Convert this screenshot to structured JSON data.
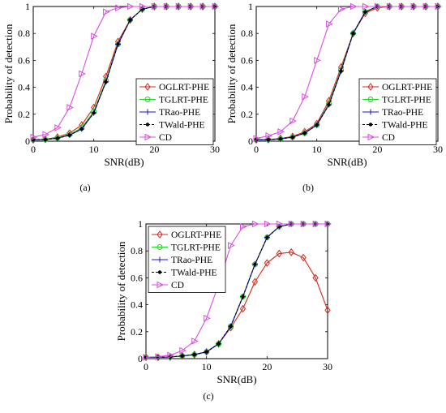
{
  "chart_data": [
    {
      "type": "line",
      "panel_label": "(a)",
      "xlabel": "SNR(dB)",
      "ylabel": "Probability of detection",
      "xlim": [
        0,
        30
      ],
      "ylim": [
        0,
        1
      ],
      "xticks": [
        0,
        10,
        20,
        30
      ],
      "yticks": [
        0,
        0.2,
        0.4,
        0.6,
        0.8,
        1
      ],
      "grid": false,
      "legend_position": "bottom-right",
      "x": [
        0,
        2,
        4,
        6,
        8,
        10,
        12,
        14,
        16,
        18,
        20,
        22,
        24,
        26,
        28,
        30
      ],
      "series": [
        {
          "name": "OGLRT-PHE",
          "color": "#cc2a1e",
          "marker": "diamond",
          "values": [
            0.01,
            0.015,
            0.03,
            0.06,
            0.12,
            0.25,
            0.48,
            0.74,
            0.9,
            0.98,
            1,
            1,
            1,
            1,
            1,
            1
          ]
        },
        {
          "name": "TGLRT-PHE",
          "color": "#1fd61f",
          "marker": "circle",
          "values": [
            0.01,
            0.013,
            0.025,
            0.05,
            0.1,
            0.22,
            0.45,
            0.72,
            0.9,
            0.98,
            1,
            1,
            1,
            1,
            1,
            1
          ]
        },
        {
          "name": "TRao-PHE",
          "color": "#1616cc",
          "marker": "plus",
          "values": [
            0.01,
            0.012,
            0.022,
            0.045,
            0.09,
            0.21,
            0.44,
            0.72,
            0.9,
            0.98,
            1,
            1,
            1,
            1,
            1,
            1
          ]
        },
        {
          "name": "TWald-PHE",
          "color": "#000000",
          "marker": "dot",
          "dash": true,
          "values": [
            0.01,
            0.012,
            0.022,
            0.045,
            0.09,
            0.21,
            0.44,
            0.72,
            0.9,
            0.98,
            1,
            1,
            1,
            1,
            1,
            1
          ]
        },
        {
          "name": "CD",
          "color": "#d84fe0",
          "marker": "triangle-right",
          "values": [
            0.03,
            0.05,
            0.1,
            0.25,
            0.5,
            0.78,
            0.96,
            0.99,
            1,
            1,
            1,
            1,
            1,
            1,
            1,
            1
          ]
        }
      ]
    },
    {
      "type": "line",
      "panel_label": "(b)",
      "xlabel": "SNR(dB)",
      "ylabel": "Probability of detection",
      "xlim": [
        0,
        30
      ],
      "ylim": [
        0,
        1
      ],
      "xticks": [
        0,
        10,
        20,
        30
      ],
      "yticks": [
        0,
        0.2,
        0.4,
        0.6,
        0.8,
        1
      ],
      "grid": false,
      "legend_position": "bottom-right",
      "x": [
        0,
        2,
        4,
        6,
        8,
        10,
        12,
        14,
        16,
        18,
        20,
        22,
        24,
        26,
        28,
        30
      ],
      "series": [
        {
          "name": "OGLRT-PHE",
          "color": "#cc2a1e",
          "marker": "diamond",
          "values": [
            0.01,
            0.012,
            0.02,
            0.035,
            0.07,
            0.13,
            0.3,
            0.55,
            0.8,
            0.95,
            0.99,
            1,
            1,
            1,
            1,
            1
          ]
        },
        {
          "name": "TGLRT-PHE",
          "color": "#1fd61f",
          "marker": "circle",
          "values": [
            0.01,
            0.011,
            0.018,
            0.03,
            0.06,
            0.12,
            0.28,
            0.53,
            0.8,
            0.96,
            1,
            1,
            1,
            1,
            1,
            1
          ]
        },
        {
          "name": "TRao-PHE",
          "color": "#1616cc",
          "marker": "plus",
          "values": [
            0.01,
            0.011,
            0.017,
            0.03,
            0.06,
            0.12,
            0.27,
            0.52,
            0.8,
            0.96,
            1,
            1,
            1,
            1,
            1,
            1
          ]
        },
        {
          "name": "TWald-PHE",
          "color": "#000000",
          "marker": "dot",
          "dash": true,
          "values": [
            0.01,
            0.011,
            0.017,
            0.03,
            0.06,
            0.12,
            0.27,
            0.52,
            0.8,
            0.96,
            1,
            1,
            1,
            1,
            1,
            1
          ]
        },
        {
          "name": "CD",
          "color": "#d84fe0",
          "marker": "triangle-right",
          "values": [
            0.02,
            0.04,
            0.07,
            0.15,
            0.33,
            0.6,
            0.87,
            0.98,
            1,
            1,
            1,
            1,
            1,
            1,
            1,
            1
          ]
        }
      ]
    },
    {
      "type": "line",
      "panel_label": "(c)",
      "xlabel": "SNR(dB)",
      "ylabel": "Probability of detection",
      "xlim": [
        0,
        30
      ],
      "ylim": [
        0,
        1
      ],
      "xticks": [
        0,
        10,
        20,
        30
      ],
      "yticks": [
        0,
        0.2,
        0.4,
        0.6,
        0.8,
        1
      ],
      "grid": false,
      "legend_position": "top-left",
      "x": [
        0,
        2,
        4,
        6,
        8,
        10,
        12,
        14,
        16,
        18,
        20,
        22,
        24,
        26,
        28,
        30
      ],
      "series": [
        {
          "name": "OGLRT-PHE",
          "color": "#cc2a1e",
          "marker": "diamond",
          "values": [
            0.01,
            0.01,
            0.012,
            0.02,
            0.03,
            0.05,
            0.11,
            0.23,
            0.37,
            0.57,
            0.71,
            0.78,
            0.79,
            0.75,
            0.6,
            0.36
          ]
        },
        {
          "name": "TGLRT-PHE",
          "color": "#1fd61f",
          "marker": "circle",
          "values": [
            0.01,
            0.01,
            0.012,
            0.02,
            0.03,
            0.05,
            0.11,
            0.24,
            0.46,
            0.7,
            0.9,
            0.98,
            1,
            1,
            1,
            1
          ]
        },
        {
          "name": "TRao-PHE",
          "color": "#1616cc",
          "marker": "plus",
          "values": [
            0.01,
            0.01,
            0.012,
            0.02,
            0.03,
            0.05,
            0.11,
            0.24,
            0.46,
            0.7,
            0.9,
            0.98,
            1,
            1,
            1,
            1
          ]
        },
        {
          "name": "TWald-PHE",
          "color": "#000000",
          "marker": "dot",
          "dash": true,
          "values": [
            0.01,
            0.01,
            0.012,
            0.02,
            0.03,
            0.05,
            0.11,
            0.24,
            0.46,
            0.7,
            0.9,
            0.98,
            1,
            1,
            1,
            1
          ]
        },
        {
          "name": "CD",
          "color": "#d84fe0",
          "marker": "triangle-right",
          "values": [
            0.01,
            0.015,
            0.025,
            0.06,
            0.13,
            0.3,
            0.55,
            0.84,
            0.98,
            1,
            1,
            1,
            1,
            1,
            1,
            1
          ]
        }
      ]
    }
  ]
}
